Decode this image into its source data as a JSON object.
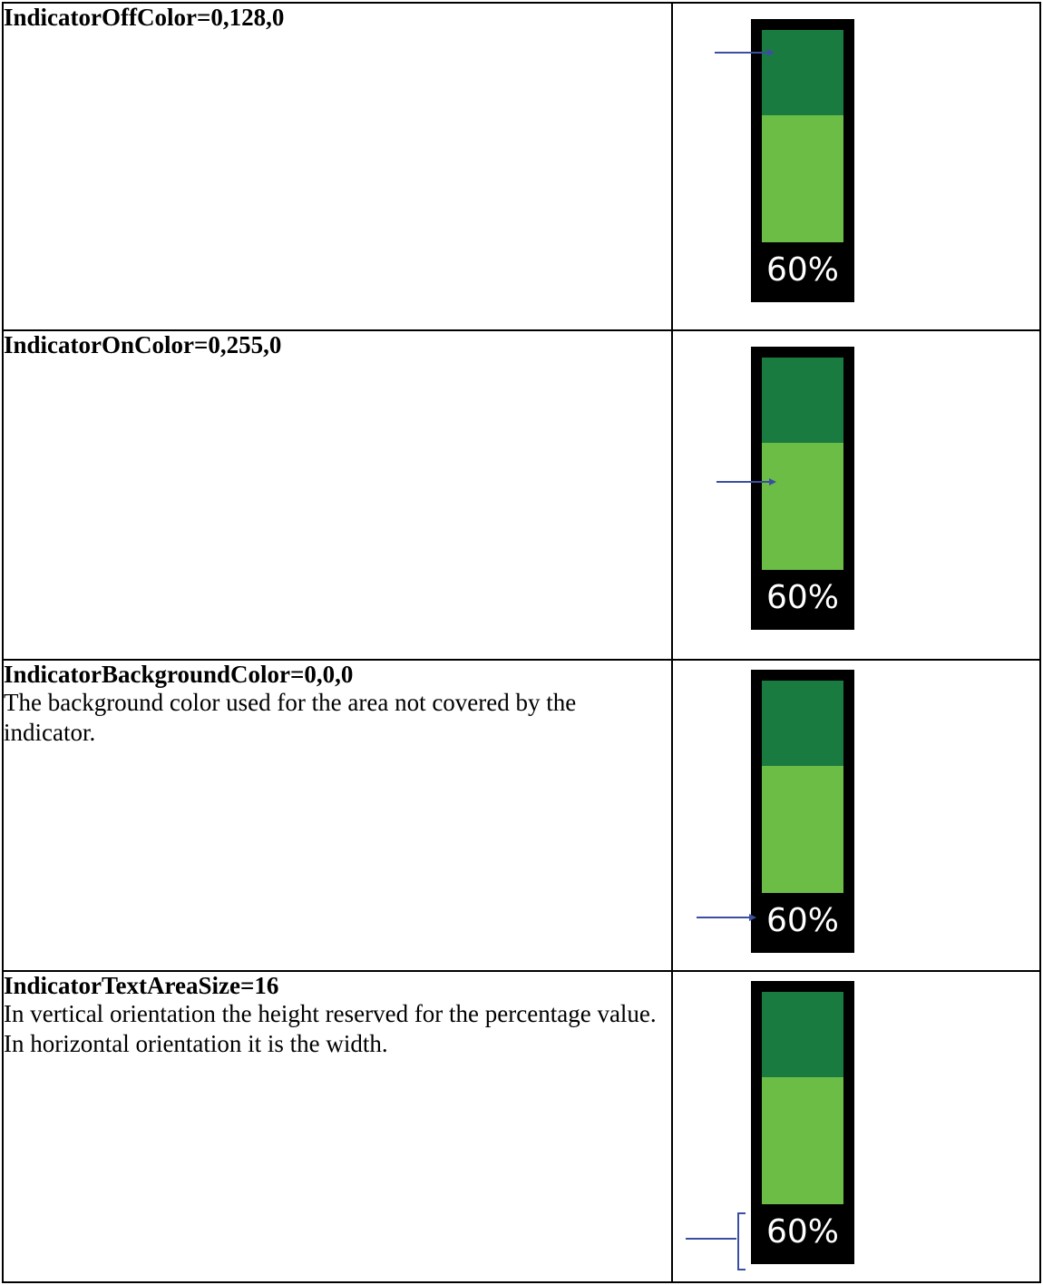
{
  "rows": [
    {
      "title": "IndicatorOffColor=0,128,0",
      "description": "",
      "indicator_text": "60%",
      "pointer": "arrow"
    },
    {
      "title": "IndicatorOnColor=0,255,0",
      "description": "",
      "indicator_text": "60%",
      "pointer": "arrow"
    },
    {
      "title": "IndicatorBackgroundColor=0,0,0",
      "description": "The background color used for the area not covered by the indicator.",
      "indicator_text": "60%",
      "pointer": "arrow"
    },
    {
      "title": "IndicatorTextAreaSize=16",
      "description": "In vertical orientation the height reserved for the percentage value. In horizontal orientation it is the width.",
      "indicator_text": "60%",
      "pointer": "bracket"
    }
  ],
  "indicator": {
    "value_fraction": 0.6,
    "off_color": "#1a7b41",
    "on_color": "#6cbd45",
    "background_color": "#000000",
    "text_color": "#ffffff",
    "pointer_color": "#3b4fa0"
  }
}
